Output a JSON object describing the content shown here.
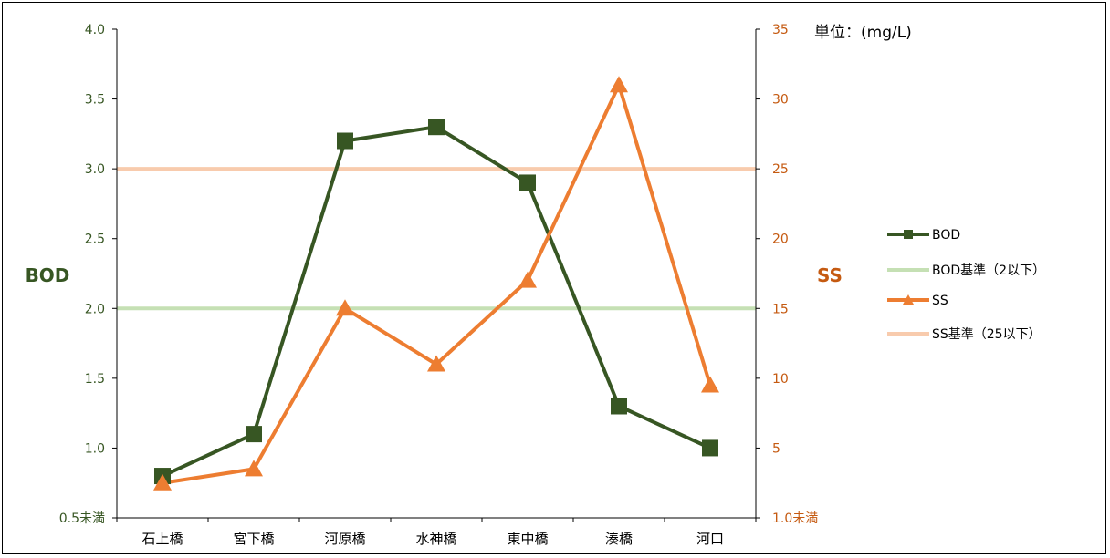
{
  "unit_label": "単位：(mg/L)",
  "chart_data": {
    "type": "line",
    "categories": [
      "石上橋",
      "宮下橋",
      "河原橋",
      "水神橋",
      "東中橋",
      "湊橋",
      "河口"
    ],
    "left_axis": {
      "title": "BOD",
      "range": [
        0.5,
        4.0
      ],
      "ticks": [
        {
          "value": 0.5,
          "label": "0.5未満"
        },
        {
          "value": 1.0,
          "label": "1.0"
        },
        {
          "value": 1.5,
          "label": "1.5"
        },
        {
          "value": 2.0,
          "label": "2.0"
        },
        {
          "value": 2.5,
          "label": "2.5"
        },
        {
          "value": 3.0,
          "label": "3.0"
        },
        {
          "value": 3.5,
          "label": "3.5"
        },
        {
          "value": 4.0,
          "label": "4.0"
        }
      ],
      "color": "#375623"
    },
    "right_axis": {
      "title": "SS",
      "range": [
        0,
        35
      ],
      "ticks": [
        {
          "value": 0,
          "label": "1.0未満"
        },
        {
          "value": 5,
          "label": "5"
        },
        {
          "value": 10,
          "label": "10"
        },
        {
          "value": 15,
          "label": "15"
        },
        {
          "value": 20,
          "label": "20"
        },
        {
          "value": 25,
          "label": "25"
        },
        {
          "value": 30,
          "label": "30"
        },
        {
          "value": 35,
          "label": "35"
        }
      ],
      "color": "#C55A11"
    },
    "series": [
      {
        "name": "BOD",
        "axis": "left",
        "marker": "square",
        "color": "#375623",
        "values": [
          0.8,
          1.1,
          3.2,
          3.3,
          2.9,
          1.3,
          1.0
        ]
      },
      {
        "name": "BOD基準（2以下）",
        "axis": "left",
        "marker": "none",
        "color": "#C5E0B4",
        "reference": true,
        "values": [
          2,
          2,
          2,
          2,
          2,
          2,
          2
        ]
      },
      {
        "name": "SS",
        "axis": "right",
        "marker": "triangle",
        "color": "#ED7D31",
        "values": [
          2.5,
          3.5,
          15,
          11,
          17,
          31,
          9.5
        ]
      },
      {
        "name": "SS基準（25以下）",
        "axis": "right",
        "marker": "none",
        "color": "#F8CBAD",
        "reference": true,
        "values": [
          25,
          25,
          25,
          25,
          25,
          25,
          25
        ]
      }
    ],
    "legend_position": "right",
    "grid": false
  }
}
